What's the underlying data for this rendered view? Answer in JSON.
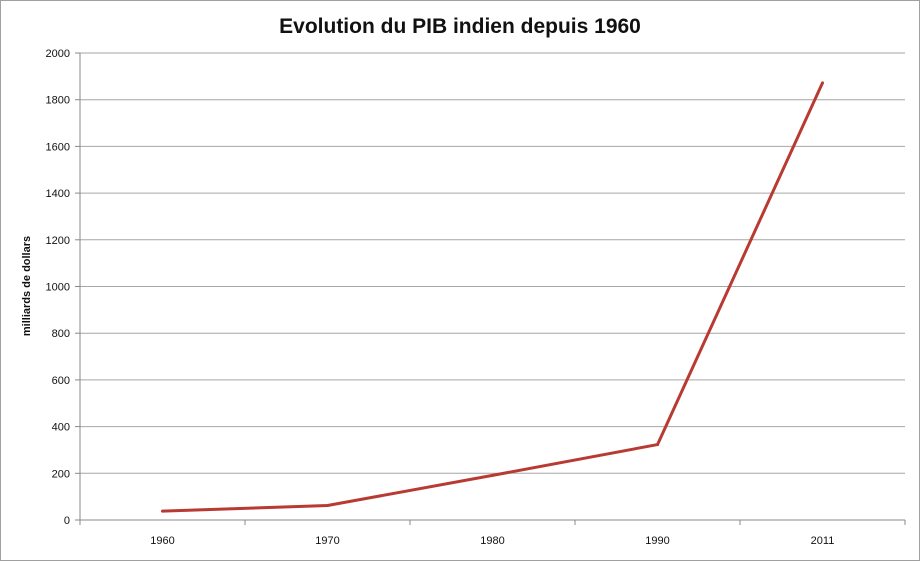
{
  "chart_data": {
    "type": "line",
    "title": "Evolution du PIB indien depuis 1960",
    "xlabel": "",
    "ylabel": "milliards de dollars",
    "categories": [
      "1960",
      "1970",
      "1980",
      "1990",
      "2011"
    ],
    "series": [
      {
        "name": "PIB",
        "values": [
          38,
          62,
          191,
          323,
          1872
        ],
        "color": "#b83a32"
      }
    ],
    "ylim": [
      0,
      2000
    ],
    "yticks": [
      "0",
      "200",
      "400",
      "600",
      "800",
      "1000",
      "1200",
      "1400",
      "1600",
      "1800",
      "2000"
    ],
    "grid": true,
    "legend": "none"
  }
}
